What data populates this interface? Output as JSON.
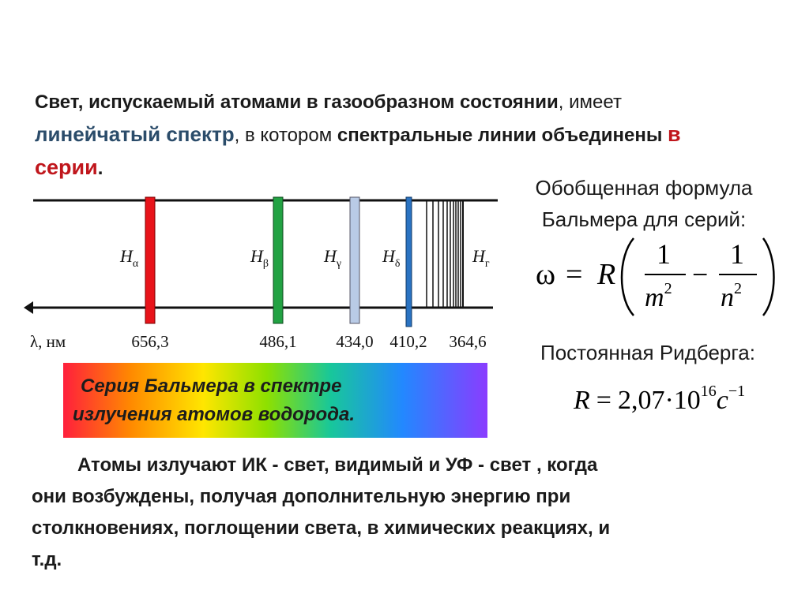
{
  "heading": {
    "part1": "Свет, испускаемый атомами в газообразном состоянии",
    "part2": ", имеет ",
    "part3": "линейчатый спектр",
    "part4": ", в котором ",
    "part5": "спектральные линии объединены ",
    "part6": "в серии",
    "part7": "."
  },
  "spectrum": {
    "axis_label": "λ, нм",
    "lines": [
      {
        "symbol": "H",
        "sub": "α",
        "wavelength": "656,3",
        "color": "#e8131a"
      },
      {
        "symbol": "H",
        "sub": "β",
        "wavelength": "486,1",
        "color": "#22a243"
      },
      {
        "symbol": "H",
        "sub": "γ",
        "wavelength": "434,0",
        "color": "#b9cbe6"
      },
      {
        "symbol": "H",
        "sub": "δ",
        "wavelength": "410,2",
        "color": "#2a73c2"
      }
    ],
    "limit": {
      "symbol": "H",
      "sub": "г",
      "wavelength": "364,6"
    }
  },
  "banner": {
    "line1": "Серия Бальмера в спектре",
    "line2": "излучения атомов водорода.",
    "colors": [
      "#ff1f3c",
      "#ff8a00",
      "#ffe600",
      "#8ee000",
      "#18c79a",
      "#2288ff",
      "#8a3cff"
    ]
  },
  "formula": {
    "title_line1": "Обобщенная формула",
    "title_line2": "Бальмера для серий:",
    "lhs": "ω",
    "eq": "=",
    "R": "R",
    "num1": "1",
    "den1": "m",
    "num2": "1",
    "den2": "n",
    "exp": "2",
    "minus": "−"
  },
  "rydberg": {
    "title": "Постоянная Ридберга:",
    "R": "R",
    "eq": "=",
    "mantissa": "2,07",
    "dot": "·",
    "base": "10",
    "exp": "16",
    "unit": "c",
    "unit_exp": "−1"
  },
  "bottom": {
    "line1": "Атомы излучают  ИК - свет, видимый и  УФ - свет , когда",
    "line2": "они возбуждены, получая дополнительную энергию при",
    "line3": "столкновениях, поглощении света, в химических реакциях, и",
    "line4": "т.д."
  }
}
